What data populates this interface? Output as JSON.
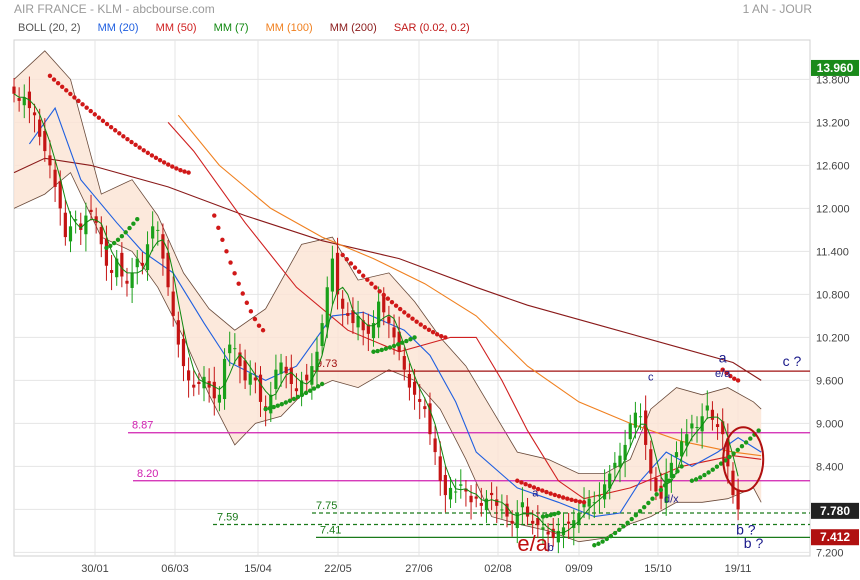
{
  "header": {
    "title": "AIR FRANCE - KLM - abcbourse.com",
    "period": "1 AN - JOUR"
  },
  "legend": [
    {
      "label": "BOLL (20, 2)",
      "color": "#555555"
    },
    {
      "label": "MM (20)",
      "color": "#1f5fe0"
    },
    {
      "label": "MM (50)",
      "color": "#d02020"
    },
    {
      "label": "MM (7)",
      "color": "#108810"
    },
    {
      "label": "MM (100)",
      "color": "#f08020"
    },
    {
      "label": "MM (200)",
      "color": "#8a1a1a"
    },
    {
      "label": "SAR (0.02, 0.2)",
      "color": "#c01818"
    }
  ],
  "colors": {
    "up_candle": "#1aa01a",
    "down_candle": "#c41414",
    "boll_fill": "#fbe3d3",
    "boll_line": "#6a4a3a",
    "grid": "#e4e4e4",
    "level_magenta": "#d020b0",
    "level_darkred": "#a01010",
    "level_green": "#1a7a1a",
    "label_green_bg": "#1a8a1a",
    "label_red_bg": "#b01010",
    "label_black_bg": "#222222",
    "wave_blue": "#1a1a8a"
  },
  "chart_data": {
    "type": "candlestick",
    "title": "AIR FRANCE - KLM - abcbourse.com",
    "period": "1 AN - JOUR",
    "ylim": [
      7.15,
      14.35
    ],
    "x_ticks": [
      "30/01",
      "06/03",
      "15/04",
      "22/05",
      "27/06",
      "02/08",
      "09/09",
      "15/10",
      "19/11"
    ],
    "y_ticks": [
      "7.200",
      "7.800",
      "8.400",
      "9.000",
      "9.600",
      "10.200",
      "10.800",
      "11.400",
      "12.000",
      "12.600",
      "13.200",
      "13.800"
    ],
    "y_tick_values": [
      7.2,
      7.8,
      8.4,
      9.0,
      9.6,
      10.2,
      10.8,
      11.4,
      12.0,
      12.6,
      13.2,
      13.8
    ],
    "price_labels": [
      {
        "text": "13.960",
        "value": 13.96,
        "style": "green"
      },
      {
        "text": "7.780",
        "value": 7.78,
        "style": "black"
      },
      {
        "text": "7.412",
        "value": 7.412,
        "style": "red"
      }
    ],
    "levels": [
      {
        "value": 9.73,
        "label": "9.73",
        "style": "darkred"
      },
      {
        "value": 8.87,
        "label": "8.87",
        "style": "magenta"
      },
      {
        "value": 8.2,
        "label": "8.20",
        "style": "magenta"
      },
      {
        "value": 7.75,
        "label": "7.75",
        "style": "green"
      },
      {
        "value": 7.59,
        "label": "7.59",
        "style": "green"
      },
      {
        "value": 7.41,
        "label": "7.41",
        "style": "green"
      }
    ],
    "wave_labels": [
      {
        "text": "e/a",
        "day": 202,
        "value": 7.22,
        "size": "large",
        "color": "#c01010"
      },
      {
        "text": "a",
        "day": 203,
        "value": 7.98,
        "size": "small",
        "color": "#1a1a8a"
      },
      {
        "text": "b",
        "day": 209,
        "value": 7.22,
        "size": "small",
        "color": "#1a1a8a"
      },
      {
        "text": "c",
        "day": 248,
        "value": 9.6,
        "size": "small",
        "color": "#1a1a8a"
      },
      {
        "text": "d/x",
        "day": 256,
        "value": 7.9,
        "size": "small",
        "color": "#1a1a8a"
      },
      {
        "text": "a",
        "day": 276,
        "value": 9.85,
        "size": "medium",
        "color": "#1a1a8a"
      },
      {
        "text": "e/a",
        "day": 276,
        "value": 9.65,
        "size": "small",
        "color": "#1a1a8a"
      },
      {
        "text": "c ?",
        "day": 303,
        "value": 9.8,
        "size": "medium",
        "color": "#1a1a8a"
      },
      {
        "text": "b ?",
        "day": 285,
        "value": 7.45,
        "size": "medium",
        "color": "#1a1a8a"
      },
      {
        "text": "b ?",
        "day": 288,
        "value": 7.26,
        "size": "medium",
        "color": "#1a1a8a"
      }
    ],
    "close_series": {
      "start_day": 0,
      "step": 2,
      "values": [
        13.6,
        13.5,
        13.55,
        13.4,
        13.3,
        13.0,
        12.8,
        12.6,
        12.3,
        12.0,
        11.6,
        11.75,
        11.85,
        11.7,
        11.9,
        11.95,
        11.8,
        11.5,
        11.2,
        11.1,
        11.3,
        11.05,
        10.95,
        11.1,
        11.3,
        11.2,
        11.5,
        11.75,
        11.7,
        11.3,
        10.9,
        10.5,
        10.1,
        9.8,
        9.6,
        9.5,
        9.55,
        9.65,
        9.5,
        9.35,
        9.4,
        9.9,
        10.1,
        10.05,
        9.8,
        9.6,
        9.7,
        9.6,
        9.3,
        9.2,
        9.4,
        9.75,
        9.85,
        9.7,
        9.55,
        9.45,
        9.6,
        9.6,
        9.8,
        10.0,
        10.4,
        10.9,
        11.3,
        10.8,
        10.6,
        10.5,
        10.4,
        10.5,
        10.3,
        10.25,
        10.4,
        10.7,
        10.55,
        10.4,
        10.2,
        10.0,
        9.75,
        9.5,
        9.4,
        9.3,
        9.2,
        8.85,
        8.6,
        8.2,
        8.0,
        8.1,
        8.05,
        8.15,
        8.05,
        7.9,
        7.95,
        7.85,
        7.95,
        8.0,
        7.85,
        7.8,
        7.7,
        7.6,
        7.75,
        7.9,
        7.7,
        7.6,
        7.58,
        7.55,
        7.45,
        7.4,
        7.5,
        7.55,
        7.6,
        7.65,
        7.75,
        7.9,
        7.95,
        7.9,
        8.0,
        8.15,
        8.3,
        8.45,
        8.55,
        8.7,
        9.0,
        9.15,
        9.1,
        8.7,
        8.3,
        8.05,
        7.95,
        8.3,
        8.45,
        8.6,
        8.75,
        8.85,
        9.0,
        8.95,
        9.1,
        9.25,
        9.05,
        8.95,
        8.85,
        8.4,
        8.0,
        7.8
      ]
    },
    "overlays": [
      {
        "name": "MM (200)",
        "color": "#8a1a1a",
        "points": [
          [
            0,
            12.5
          ],
          [
            12,
            12.7
          ],
          [
            30,
            12.6
          ],
          [
            60,
            12.3
          ],
          [
            90,
            11.9
          ],
          [
            120,
            11.55
          ],
          [
            150,
            11.3
          ],
          [
            180,
            10.9
          ],
          [
            200,
            10.65
          ],
          [
            230,
            10.35
          ],
          [
            260,
            10.05
          ],
          [
            280,
            9.85
          ],
          [
            291,
            9.6
          ]
        ]
      },
      {
        "name": "MM (100)",
        "color": "#f08020",
        "points": [
          [
            64,
            13.3
          ],
          [
            80,
            12.6
          ],
          [
            100,
            12.0
          ],
          [
            120,
            11.6
          ],
          [
            140,
            11.3
          ],
          [
            160,
            10.95
          ],
          [
            180,
            10.5
          ],
          [
            200,
            9.8
          ],
          [
            220,
            9.3
          ],
          [
            240,
            9.0
          ],
          [
            260,
            8.75
          ],
          [
            280,
            8.6
          ],
          [
            291,
            8.55
          ]
        ]
      },
      {
        "name": "MM (50)",
        "color": "#d02020",
        "points": [
          [
            60,
            13.2
          ],
          [
            70,
            12.8
          ],
          [
            90,
            11.8
          ],
          [
            110,
            10.9
          ],
          [
            130,
            10.3
          ],
          [
            150,
            10.0
          ],
          [
            170,
            10.2
          ],
          [
            180,
            10.2
          ],
          [
            190,
            9.6
          ],
          [
            200,
            8.9
          ],
          [
            212,
            8.2
          ],
          [
            222,
            7.95
          ],
          [
            240,
            8.1
          ],
          [
            260,
            8.4
          ],
          [
            280,
            8.55
          ],
          [
            291,
            8.5
          ]
        ]
      },
      {
        "name": "MM (20)",
        "color": "#1f5fe0",
        "points": [
          [
            6,
            12.9
          ],
          [
            16,
            13.4
          ],
          [
            26,
            12.4
          ],
          [
            40,
            11.8
          ],
          [
            50,
            11.4
          ],
          [
            62,
            11.1
          ],
          [
            74,
            10.4
          ],
          [
            84,
            9.85
          ],
          [
            98,
            9.6
          ],
          [
            110,
            9.8
          ],
          [
            124,
            10.5
          ],
          [
            136,
            10.55
          ],
          [
            152,
            10.3
          ],
          [
            162,
            9.95
          ],
          [
            172,
            9.3
          ],
          [
            180,
            8.6
          ],
          [
            196,
            8.1
          ],
          [
            212,
            7.9
          ],
          [
            226,
            7.7
          ],
          [
            236,
            7.75
          ],
          [
            244,
            8.2
          ],
          [
            254,
            8.6
          ],
          [
            264,
            8.4
          ],
          [
            274,
            8.6
          ],
          [
            282,
            8.8
          ],
          [
            291,
            8.6
          ]
        ]
      }
    ],
    "bollinger": {
      "upper": [
        [
          0,
          13.8
        ],
        [
          12,
          14.2
        ],
        [
          22,
          13.8
        ],
        [
          34,
          12.2
        ],
        [
          46,
          12.4
        ],
        [
          56,
          11.9
        ],
        [
          66,
          11.1
        ],
        [
          76,
          10.6
        ],
        [
          86,
          10.3
        ],
        [
          98,
          10.6
        ],
        [
          112,
          11.5
        ],
        [
          124,
          11.6
        ],
        [
          134,
          11.0
        ],
        [
          146,
          11.1
        ],
        [
          156,
          10.7
        ],
        [
          166,
          10.2
        ],
        [
          176,
          9.8
        ],
        [
          186,
          9.2
        ],
        [
          196,
          8.6
        ],
        [
          208,
          8.5
        ],
        [
          220,
          8.3
        ],
        [
          230,
          8.3
        ],
        [
          240,
          8.5
        ],
        [
          248,
          9.2
        ],
        [
          258,
          9.5
        ],
        [
          268,
          9.4
        ],
        [
          278,
          9.5
        ],
        [
          288,
          9.3
        ],
        [
          291,
          9.2
        ]
      ],
      "lower": [
        [
          0,
          12.0
        ],
        [
          12,
          12.2
        ],
        [
          22,
          12.5
        ],
        [
          34,
          11.6
        ],
        [
          46,
          11.4
        ],
        [
          56,
          10.9
        ],
        [
          66,
          10.2
        ],
        [
          76,
          9.4
        ],
        [
          86,
          8.7
        ],
        [
          94,
          9.0
        ],
        [
          104,
          9.1
        ],
        [
          112,
          9.4
        ],
        [
          124,
          9.6
        ],
        [
          134,
          9.5
        ],
        [
          146,
          9.75
        ],
        [
          156,
          9.6
        ],
        [
          166,
          9.2
        ],
        [
          176,
          8.5
        ],
        [
          186,
          7.7
        ],
        [
          196,
          7.6
        ],
        [
          208,
          7.5
        ],
        [
          220,
          7.35
        ],
        [
          230,
          7.4
        ],
        [
          240,
          7.6
        ],
        [
          248,
          7.7
        ],
        [
          258,
          7.9
        ],
        [
          268,
          7.9
        ],
        [
          278,
          7.95
        ],
        [
          288,
          8.1
        ],
        [
          291,
          7.9
        ]
      ]
    },
    "sar": [
      {
        "from": [
          14,
          13.85
        ],
        "to": [
          68,
          12.5
        ],
        "side": "above"
      },
      {
        "from": [
          78,
          11.9
        ],
        "to": [
          97,
          10.3
        ],
        "side": "above"
      },
      {
        "from": [
          36,
          11.45
        ],
        "to": [
          48,
          11.85
        ],
        "side": "below"
      },
      {
        "from": [
          98,
          9.2
        ],
        "to": [
          120,
          9.55
        ],
        "side": "below"
      },
      {
        "from": [
          128,
          11.35
        ],
        "to": [
          168,
          10.2
        ],
        "side": "above"
      },
      {
        "from": [
          140,
          10.0
        ],
        "to": [
          156,
          10.2
        ],
        "side": "below"
      },
      {
        "from": [
          196,
          8.2
        ],
        "to": [
          222,
          7.9
        ],
        "side": "above"
      },
      {
        "from": [
          206,
          7.7
        ],
        "to": [
          212,
          7.75
        ],
        "side": "below"
      },
      {
        "from": [
          226,
          7.3
        ],
        "to": [
          260,
          8.4
        ],
        "side": "below"
      },
      {
        "from": [
          276,
          9.75
        ],
        "to": [
          282,
          9.6
        ],
        "side": "above"
      },
      {
        "from": [
          264,
          8.2
        ],
        "to": [
          290,
          8.9
        ],
        "side": "below"
      }
    ],
    "highlight_ellipse": {
      "day": 284,
      "value": 8.5,
      "color": "#b01010"
    }
  }
}
